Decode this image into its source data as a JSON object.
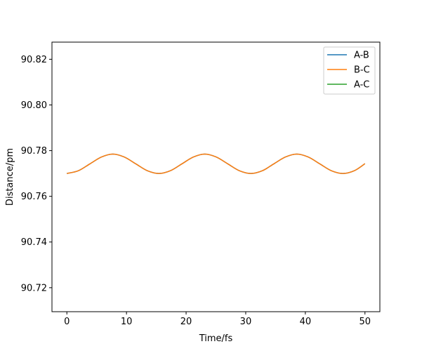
{
  "chart_data": {
    "type": "line",
    "title": "",
    "xlabel": "Time/fs",
    "ylabel": "Distance/pm",
    "xlim": [
      -2.5,
      52.5
    ],
    "ylim": [
      90.7095,
      90.8275
    ],
    "xticks": [
      0,
      10,
      20,
      30,
      40,
      50
    ],
    "xtick_labels": [
      "0",
      "10",
      "20",
      "30",
      "40",
      "50"
    ],
    "yticks": [
      90.72,
      90.74,
      90.76,
      90.78,
      90.8,
      90.82
    ],
    "ytick_labels": [
      "90.72",
      "90.74",
      "90.76",
      "90.78",
      "90.80",
      "90.82"
    ],
    "grid": false,
    "legend_position": "top-right",
    "series": [
      {
        "name": "A-B",
        "color": "#1f77b4",
        "x": [
          0,
          1.93,
          3.86,
          5.79,
          7.71,
          9.64,
          11.57,
          13.5,
          15.43,
          17.36,
          19.29,
          21.21,
          23.14,
          25.07,
          27.0,
          28.93,
          30.86,
          32.79,
          34.71,
          36.64,
          38.57,
          40.5,
          42.43,
          44.36,
          46.29,
          48.21,
          50
        ],
        "y": [
          90.77,
          90.7712,
          90.7742,
          90.7772,
          90.7785,
          90.7772,
          90.7742,
          90.7712,
          90.77,
          90.7712,
          90.7742,
          90.7772,
          90.7785,
          90.7772,
          90.7742,
          90.7712,
          90.77,
          90.7712,
          90.7742,
          90.7772,
          90.7785,
          90.7772,
          90.7742,
          90.7712,
          90.77,
          90.7712,
          90.7743
        ]
      },
      {
        "name": "B-C",
        "color": "#ff7f0e",
        "x": [
          0,
          1.93,
          3.86,
          5.79,
          7.71,
          9.64,
          11.57,
          13.5,
          15.43,
          17.36,
          19.29,
          21.21,
          23.14,
          25.07,
          27.0,
          28.93,
          30.86,
          32.79,
          34.71,
          36.64,
          38.57,
          40.5,
          42.43,
          44.36,
          46.29,
          48.21,
          50
        ],
        "y": [
          90.77,
          90.7712,
          90.7742,
          90.7772,
          90.7785,
          90.7772,
          90.7742,
          90.7712,
          90.77,
          90.7712,
          90.7742,
          90.7772,
          90.7785,
          90.7772,
          90.7742,
          90.7712,
          90.77,
          90.7712,
          90.7742,
          90.7772,
          90.7785,
          90.7772,
          90.7742,
          90.7712,
          90.77,
          90.7712,
          90.7743
        ]
      },
      {
        "name": "A-C",
        "color": "#2ca02c",
        "x": [],
        "y": []
      }
    ]
  }
}
